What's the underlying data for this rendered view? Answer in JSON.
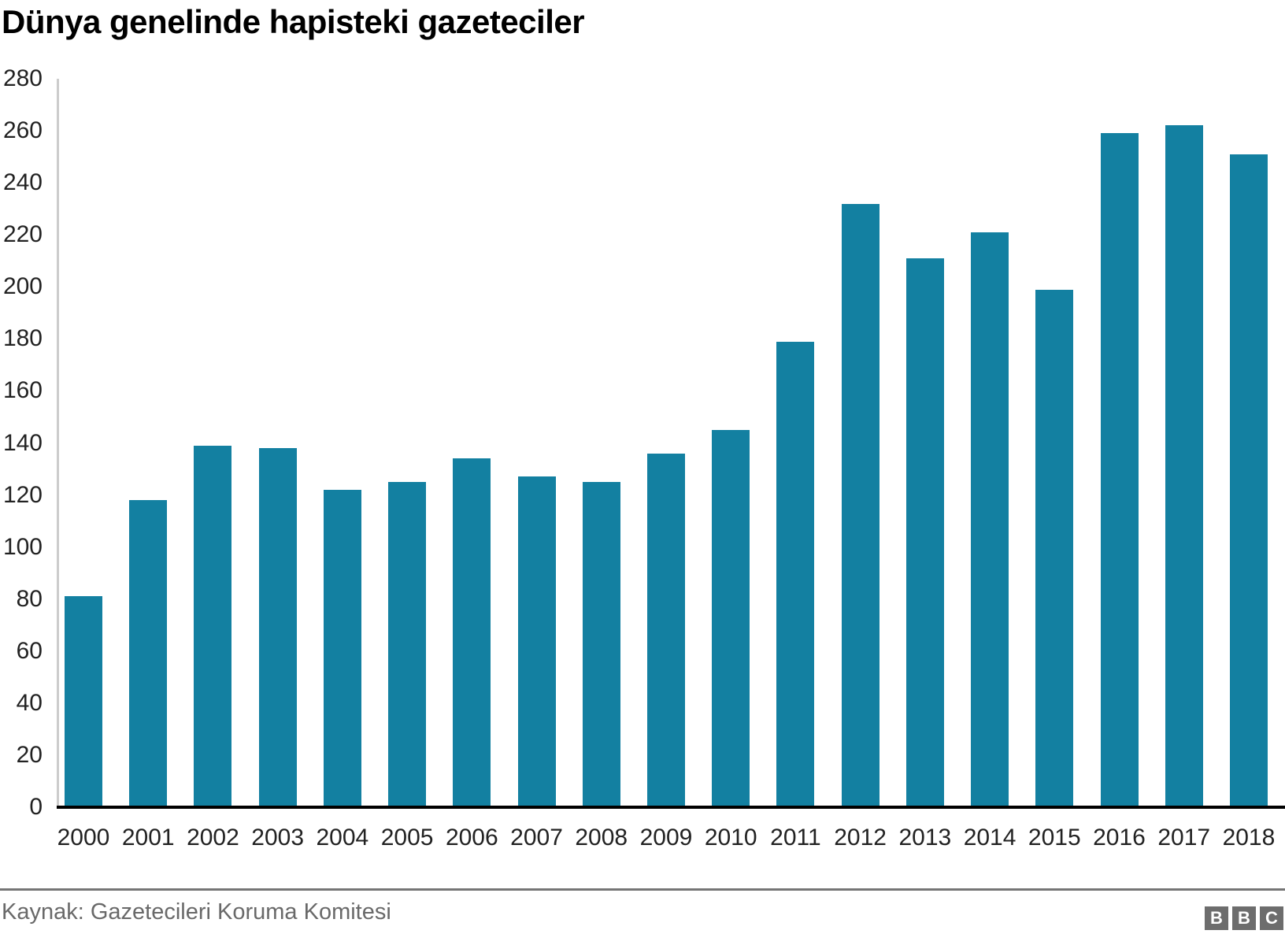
{
  "title": "Dünya genelinde hapisteki gazeteciler",
  "footer": {
    "source": "Kaynak: Gazetecileri Koruma Komitesi",
    "logo_letters": [
      "B",
      "B",
      "C"
    ]
  },
  "colors": {
    "bar": "#1380A1",
    "axis_line": "#000000",
    "y_axis_line": "#cccccc",
    "divider": "#757575",
    "logo_square": "#6d6d6d",
    "muted_text": "#696969",
    "tick_text": "#222222"
  },
  "chart_data": {
    "type": "bar",
    "title": "Dünya genelinde hapisteki gazeteciler",
    "xlabel": "",
    "ylabel": "",
    "categories": [
      "2000",
      "2001",
      "2002",
      "2003",
      "2004",
      "2005",
      "2006",
      "2007",
      "2008",
      "2009",
      "2010",
      "2011",
      "2012",
      "2013",
      "2014",
      "2015",
      "2016",
      "2017",
      "2018"
    ],
    "values": [
      81,
      118,
      139,
      138,
      122,
      125,
      134,
      127,
      125,
      136,
      145,
      179,
      232,
      211,
      221,
      199,
      259,
      262,
      251
    ],
    "ylim": [
      0,
      280
    ],
    "yticks": [
      0,
      20,
      40,
      60,
      80,
      100,
      120,
      140,
      160,
      180,
      200,
      220,
      240,
      260,
      280
    ],
    "grid": false,
    "legend": "none",
    "bar_color": "#1380A1"
  }
}
